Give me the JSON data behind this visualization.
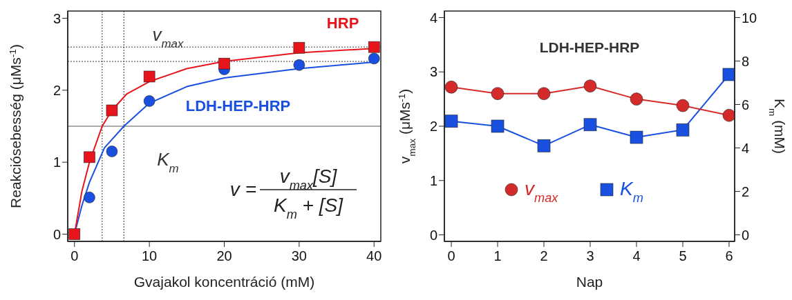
{
  "chart_data": [
    {
      "type": "scatter",
      "xlabel": "Gvajakol koncentráció (mM)",
      "ylabel": "Reakciósebesség (μMs$^{-1}$)",
      "xlim": [
        -0.9,
        40.9
      ],
      "xticks": [
        0,
        10,
        20,
        30,
        40
      ],
      "ylim": [
        -0.1,
        3.1
      ],
      "yticks": [
        0,
        1,
        2,
        3
      ],
      "series": [
        {
          "name": "HRP",
          "color": "#e8141b",
          "marker": "square",
          "x": [
            0,
            2,
            5,
            10,
            20,
            30,
            40
          ],
          "values": [
            0,
            1.07,
            1.72,
            2.19,
            2.37,
            2.59,
            2.6
          ]
        },
        {
          "name": "LDH-HEP-HRP",
          "color": "#1a50e0",
          "marker": "circle",
          "x": [
            2,
            5,
            10,
            20,
            30,
            40
          ],
          "values": [
            0.51,
            1.15,
            1.85,
            2.29,
            2.35,
            2.44
          ]
        },
        {
          "type": "line",
          "color": "#e8141b",
          "x": [
            0,
            0.5,
            1,
            2,
            3.7,
            5,
            7,
            10,
            15,
            20,
            30,
            40
          ],
          "values": [
            0,
            0.3,
            0.6,
            1.0,
            1.5,
            1.72,
            1.95,
            2.12,
            2.3,
            2.4,
            2.52,
            2.58
          ]
        },
        {
          "type": "line",
          "color": "#1a50e0",
          "x": [
            0,
            0.5,
            1,
            2,
            4,
            6.6,
            10,
            15,
            20,
            30,
            40
          ],
          "values": [
            0,
            0.2,
            0.4,
            0.72,
            1.2,
            1.5,
            1.82,
            2.05,
            2.17,
            2.3,
            2.39
          ]
        }
      ],
      "ref_lines": [
        {
          "axis": "y",
          "value": 2.6,
          "line_style": "dotted",
          "color": "#333333"
        },
        {
          "axis": "y",
          "value": 2.4,
          "line_style": "dotted",
          "color": "#333333"
        },
        {
          "axis": "y",
          "value": 1.5,
          "line_style": "solid",
          "color": "#555555"
        },
        {
          "axis": "x",
          "value": 3.7,
          "line_style": "dotted",
          "color": "#333333"
        },
        {
          "axis": "x",
          "value": 6.6,
          "line_style": "dotted",
          "color": "#333333"
        }
      ],
      "annotations": [
        "v$_{max}$",
        "K$_{m}$",
        "v =",
        "v$_{max}$[S]",
        "K$_{m}$ + [S]"
      ]
    },
    {
      "type": "line",
      "title": "LDH-HEP-HRP",
      "xlabel": "Nap",
      "ylabel": "v$_{max}$ (μMs$^{-1}$)",
      "y2label": "K$_{m}$ (mM)",
      "xlim": [
        -0.15,
        6.12
      ],
      "xticks": [
        0,
        1,
        2,
        3,
        4,
        5,
        6
      ],
      "ylim": [
        -0.12,
        4.12
      ],
      "yticks": [
        0,
        1,
        2,
        3,
        4
      ],
      "y2lim": [
        -0.3,
        10.3
      ],
      "y2ticks": [
        0,
        2,
        4,
        6,
        8,
        10
      ],
      "legend": "bottom",
      "series": [
        {
          "name": "v$_{max}$",
          "color": "#d42a2a",
          "marker": "circle",
          "x": [
            0,
            1,
            2,
            3,
            4,
            5,
            6
          ],
          "values": [
            2.72,
            2.6,
            2.6,
            2.74,
            2.5,
            2.38,
            2.2
          ]
        },
        {
          "name": "K$_{m}$",
          "color": "#1a50e0",
          "marker": "square",
          "axis": "y2",
          "x": [
            0,
            1,
            2,
            3,
            4,
            5,
            6
          ],
          "values": [
            5.23,
            5.0,
            4.1,
            5.07,
            4.49,
            4.83,
            7.38
          ]
        }
      ]
    }
  ]
}
